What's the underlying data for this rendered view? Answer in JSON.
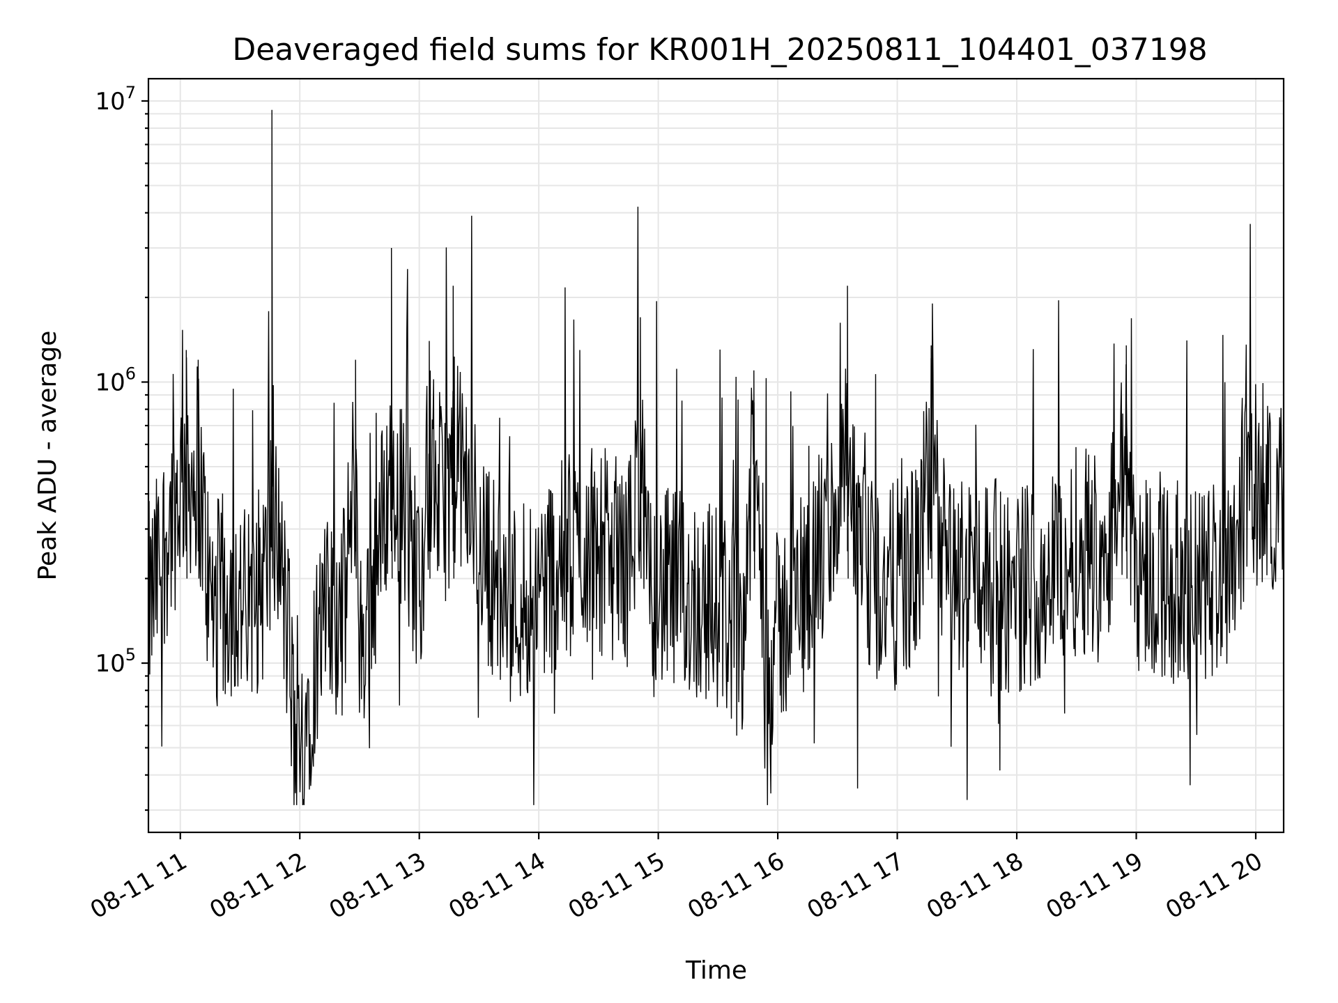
{
  "chart_data": {
    "type": "line",
    "title": "Deaveraged field sums for KR001H_20250811_104401_037198",
    "xlabel": "Time",
    "ylabel": "Peak ADU - average",
    "y_scale": "log",
    "ylim": [
      25000,
      12000000
    ],
    "xlim": [
      "2025-08-11 10:44",
      "2025-08-11 20:14"
    ],
    "grid": true,
    "x_ticks": [
      "08-11 11",
      "08-11 12",
      "08-11 13",
      "08-11 14",
      "08-11 15",
      "08-11 16",
      "08-11 17",
      "08-11 18",
      "08-11 19",
      "08-11 20"
    ],
    "y_ticks": [
      {
        "base": "10",
        "exp": "5",
        "value": 100000
      },
      {
        "base": "10",
        "exp": "6",
        "value": 1000000
      },
      {
        "base": "10",
        "exp": "7",
        "value": 10000000
      }
    ],
    "colors": {
      "series": "#000000",
      "grid": "#e6e6e6"
    },
    "series": [
      {
        "points": [
          [
            "10:45",
            180000
          ],
          [
            "10:52",
            300000
          ],
          [
            "10:58",
            420000
          ],
          [
            "11:03",
            1300000
          ],
          [
            "11:06",
            500000
          ],
          [
            "11:09",
            1200000
          ],
          [
            "11:15",
            180000
          ],
          [
            "11:25",
            200000
          ],
          [
            "11:35",
            170000
          ],
          [
            "11:45",
            260000
          ],
          [
            "11:55",
            120000
          ],
          [
            "11:46",
            9300000
          ],
          [
            "11:50",
            250000
          ],
          [
            "11:58",
            45000
          ],
          [
            "12:10",
            150000
          ],
          [
            "12:22",
            170000
          ],
          [
            "12:28",
            1200000
          ],
          [
            "12:30",
            120000
          ],
          [
            "12:40",
            300000
          ],
          [
            "12:46",
            3000000
          ],
          [
            "12:50",
            450000
          ],
          [
            "13:00",
            220000
          ],
          [
            "13:05",
            1400000
          ],
          [
            "13:12",
            400000
          ],
          [
            "13:17",
            2200000
          ],
          [
            "13:22",
            500000
          ],
          [
            "13:35",
            250000
          ],
          [
            "13:45",
            180000
          ],
          [
            "13:55",
            200000
          ],
          [
            "14:10",
            250000
          ],
          [
            "14:25",
            300000
          ],
          [
            "14:45",
            250000
          ],
          [
            "14:51",
            1700000
          ],
          [
            "14:55",
            200000
          ],
          [
            "15:10",
            200000
          ],
          [
            "15:30",
            180000
          ],
          [
            "15:42",
            150000
          ],
          [
            "15:48",
            1100000
          ],
          [
            "15:55",
            120000
          ],
          [
            "16:10",
            200000
          ],
          [
            "16:25",
            300000
          ],
          [
            "16:35",
            2200000
          ],
          [
            "16:40",
            250000
          ],
          [
            "16:55",
            200000
          ],
          [
            "17:10",
            250000
          ],
          [
            "17:17",
            1350000
          ],
          [
            "17:25",
            220000
          ],
          [
            "17:40",
            250000
          ],
          [
            "17:55",
            200000
          ],
          [
            "18:10",
            220000
          ],
          [
            "18:30",
            280000
          ],
          [
            "18:45",
            300000
          ],
          [
            "18:55",
            1350000
          ],
          [
            "19:00",
            250000
          ],
          [
            "19:15",
            220000
          ],
          [
            "19:30",
            200000
          ],
          [
            "19:45",
            250000
          ],
          [
            "19:55",
            450000
          ],
          [
            "20:05",
            500000
          ],
          [
            "20:14",
            450000
          ]
        ]
      }
    ]
  }
}
